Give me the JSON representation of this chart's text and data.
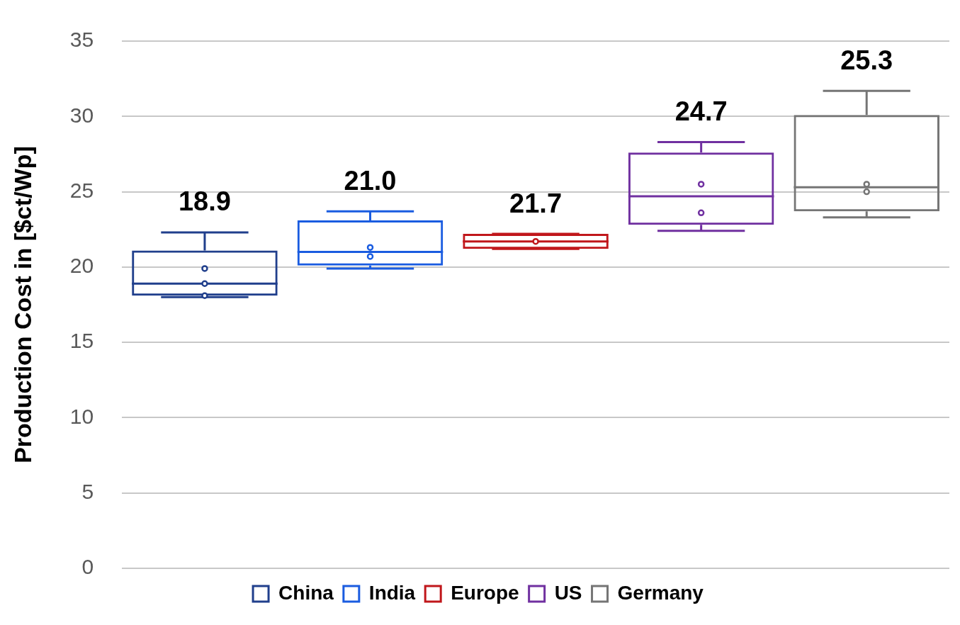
{
  "chart_data": {
    "type": "box",
    "ylabel": "Production Cost in [$ct/Wp]",
    "categories": [
      null,
      null,
      null,
      null,
      null
    ],
    "ylim": [
      0,
      35
    ],
    "yticks": [
      0,
      5,
      10,
      15,
      20,
      25,
      30,
      35
    ],
    "grid": "y",
    "legend": "bottom",
    "tick_labels": "y",
    "series": [
      {
        "name": "China",
        "color": "#203f8c",
        "boxes": [
          {
            "low": 18.0,
            "q1": 18.1,
            "median": 18.9,
            "q3": 21.1,
            "high": 22.3,
            "outliers": [
              19.9,
              18.9,
              18.1
            ]
          },
          null,
          null,
          null,
          null
        ],
        "value_labels": [
          "18.9",
          null,
          null,
          null,
          null
        ]
      },
      {
        "name": "India",
        "color": "#1a5ce0",
        "boxes": [
          null,
          {
            "low": 19.9,
            "q1": 20.1,
            "median": 21.0,
            "q3": 23.1,
            "high": 23.7,
            "outliers": [
              21.3,
              20.7
            ]
          },
          null,
          null,
          null
        ],
        "value_labels": [
          null,
          "21.0",
          null,
          null,
          null
        ]
      },
      {
        "name": "Europe",
        "color": "#c0171b",
        "boxes": [
          null,
          null,
          {
            "low": 21.2,
            "q1": 21.2,
            "median": 21.7,
            "q3": 22.2,
            "high": 22.2,
            "outliers": [
              21.7
            ]
          },
          null,
          null
        ],
        "value_labels": [
          null,
          null,
          "21.7",
          null,
          null
        ]
      },
      {
        "name": "US",
        "color": "#7030a0",
        "boxes": [
          null,
          null,
          null,
          {
            "low": 22.4,
            "q1": 22.8,
            "median": 24.7,
            "q3": 27.6,
            "high": 28.3,
            "outliers": [
              25.5,
              23.6
            ]
          },
          null
        ],
        "value_labels": [
          null,
          null,
          null,
          "24.7",
          null
        ]
      },
      {
        "name": "Germany",
        "color": "#757575",
        "boxes": [
          null,
          null,
          null,
          null,
          {
            "low": 23.3,
            "q1": 23.7,
            "median": 25.3,
            "q3": 30.1,
            "high": 31.7,
            "outliers": [
              25.5,
              25.0
            ]
          }
        ],
        "value_labels": [
          null,
          null,
          null,
          null,
          "25.3"
        ]
      }
    ]
  }
}
